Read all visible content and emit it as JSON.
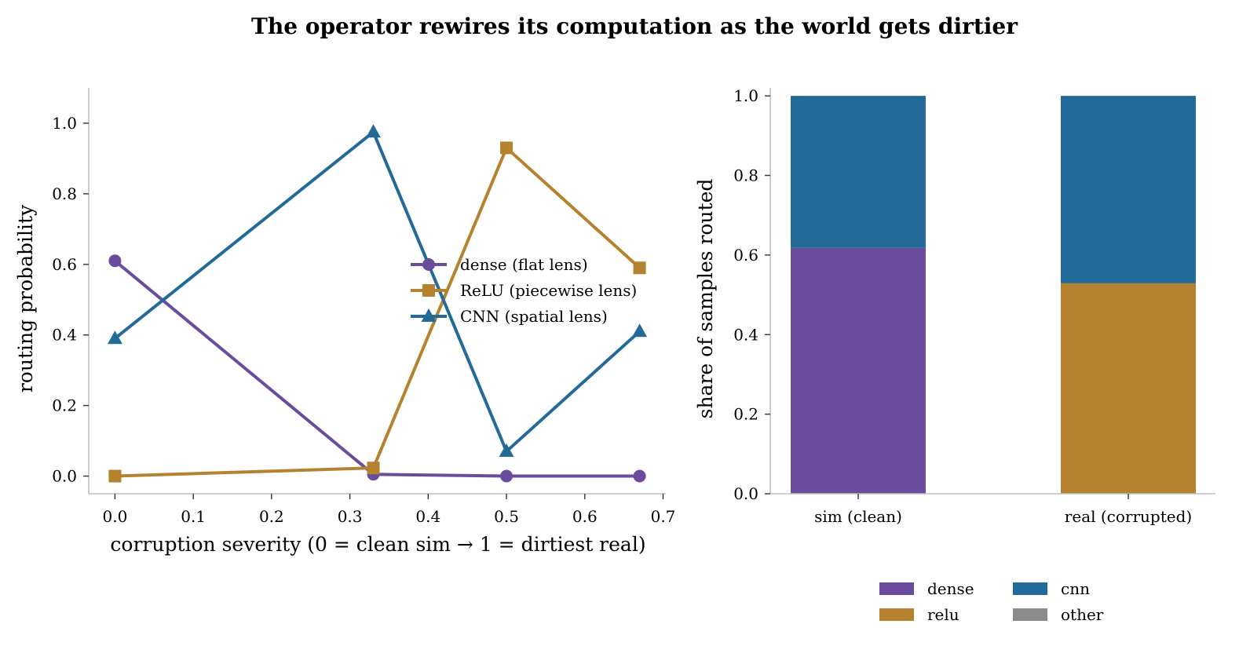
{
  "title": "The operator rewires its computation as the world gets dirtier",
  "chart_data": [
    {
      "type": "line",
      "xlabel": "corruption severity (0 = clean sim → 1 = dirtiest real)",
      "ylabel": "routing probability",
      "xlim": [
        -0.0335,
        0.7035
      ],
      "ylim": [
        -0.05,
        1.1
      ],
      "xticks": [
        "0.0",
        "0.1",
        "0.2",
        "0.3",
        "0.4",
        "0.5",
        "0.6",
        "0.7"
      ],
      "yticks": [
        "0.0",
        "0.2",
        "0.4",
        "0.6",
        "0.8",
        "1.0"
      ],
      "x": [
        0.0,
        0.33,
        0.5,
        0.67
      ],
      "series": [
        {
          "name": "dense (flat lens)",
          "values": [
            0.61,
            0.005,
            0.0,
            0.0
          ],
          "color": "#6a4c9c",
          "marker": "circle"
        },
        {
          "name": "ReLU (piecewise lens)",
          "values": [
            0.0,
            0.023,
            0.93,
            0.59
          ],
          "color": "#b5822f",
          "marker": "square"
        },
        {
          "name": "CNN (spatial lens)",
          "values": [
            0.39,
            0.975,
            0.07,
            0.41
          ],
          "color": "#236a99",
          "marker": "triangle"
        }
      ],
      "legend_position": "center-right",
      "grid": false
    },
    {
      "type": "bar",
      "stacked": true,
      "ylabel": "share of samples routed",
      "ylim": [
        0,
        1.02
      ],
      "yticks": [
        "0.0",
        "0.2",
        "0.4",
        "0.6",
        "0.8",
        "1.0"
      ],
      "categories": [
        "sim (clean)",
        "real (corrupted)"
      ],
      "series": [
        {
          "name": "dense",
          "values": [
            0.618,
            0.0
          ],
          "color": "#6a4c9c"
        },
        {
          "name": "relu",
          "values": [
            0.0,
            0.529
          ],
          "color": "#b5822f"
        },
        {
          "name": "cnn",
          "values": [
            0.382,
            0.471
          ],
          "color": "#236a99"
        },
        {
          "name": "other",
          "values": [
            0.0,
            0.0
          ],
          "color": "#8c8c8c"
        }
      ],
      "legend_position": "bottom-right",
      "grid": false
    }
  ]
}
